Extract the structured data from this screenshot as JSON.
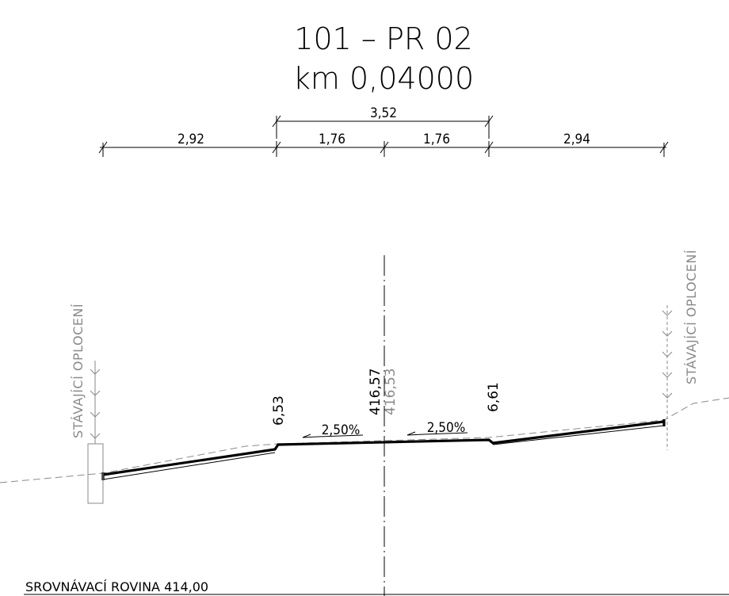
{
  "title": {
    "line1": "101 – PR 02",
    "line2": "km 0,04000"
  },
  "dimensions": {
    "overall_center": "3,52",
    "left_shoulder": "2,92",
    "left_lane": "1,76",
    "right_lane": "1,76",
    "right_shoulder": "2,94"
  },
  "levels": {
    "left_edge": "6,53",
    "axis_design": "416,57",
    "axis_existing": "416,53",
    "right_edge": "6,61"
  },
  "slopes": {
    "left": "2,50%",
    "right": "2,50%"
  },
  "labels": {
    "fence_left": "STÁVAJÍCÍ OPLOCENÍ",
    "fence_right": "STÁVAJÍCÍ OPLOCENÍ",
    "datum": "SROVNÁVACÍ ROVINA 414,00"
  },
  "colors": {
    "line": "#000000",
    "existing": "#8a8a8a"
  }
}
